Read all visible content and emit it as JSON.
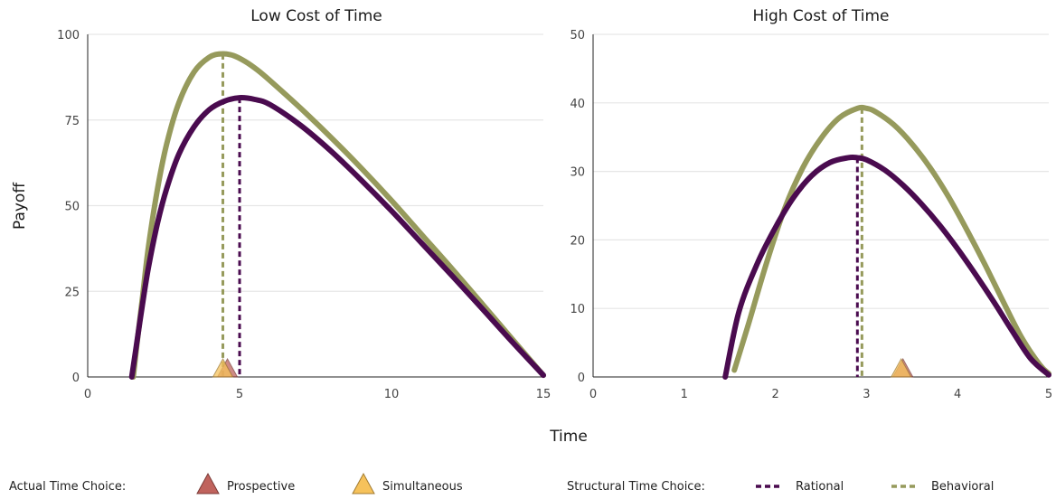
{
  "shared": {
    "ylabel": "Payoff",
    "xlabel": "Time"
  },
  "legend": {
    "actual_title": "Actual Time Choice:",
    "prospective": "Prospective",
    "simultaneous": "Simultaneous",
    "structural_title": "Structural Time Choice:",
    "rational": "Rational",
    "behavioral": "Behavioral"
  },
  "colors": {
    "rational": "#4a0b4f",
    "behavioral": "#969a5c",
    "prospective": "#c0635d",
    "simultaneous": "#f6c25b",
    "grid": "#e6e6e6",
    "axis": "#222222"
  },
  "chart_data": [
    {
      "type": "line",
      "title": "Low Cost of Time",
      "xlim": [
        0,
        15
      ],
      "ylim": [
        0,
        100
      ],
      "xticks": [
        0,
        5,
        10,
        15
      ],
      "yticks": [
        0,
        25,
        50,
        75,
        100
      ],
      "grid": true,
      "series": [
        {
          "name": "Rational",
          "x": [
            1.45,
            1.6,
            1.8,
            2.0,
            2.3,
            2.6,
            3.0,
            3.5,
            4.0,
            4.5,
            5.0,
            5.5,
            6.0,
            7.0,
            8.0,
            9.0,
            10.0,
            11.0,
            12.0,
            13.0,
            14.0,
            15.0
          ],
          "y": [
            0,
            9,
            21,
            32,
            45,
            55,
            65,
            73,
            78,
            80.5,
            81.5,
            81,
            79.5,
            73.5,
            66,
            57.5,
            48.5,
            39,
            29.5,
            19.8,
            10,
            0.5
          ]
        },
        {
          "name": "Behavioral",
          "x": [
            1.5,
            1.6,
            1.8,
            2.0,
            2.3,
            2.6,
            3.0,
            3.5,
            4.0,
            4.4,
            4.8,
            5.2,
            5.6,
            6.0,
            7.0,
            8.0,
            9.0,
            10.0,
            11.0,
            12.0,
            13.0,
            14.0,
            15.0
          ],
          "y": [
            0,
            8,
            23,
            38,
            55,
            68,
            80,
            89,
            93.3,
            94.3,
            93.8,
            92,
            89.5,
            86.5,
            78.5,
            70,
            61,
            51.5,
            41.5,
            31.5,
            21.2,
            10.8,
            0.5
          ]
        }
      ],
      "structural_choice": {
        "Rational": 5.0,
        "Behavioral": 4.45
      },
      "actual_choice": {
        "Prospective": 4.6,
        "Simultaneous": 4.45
      }
    },
    {
      "type": "line",
      "title": "High Cost of Time",
      "xlim": [
        0,
        5
      ],
      "ylim": [
        0,
        50
      ],
      "xticks": [
        0,
        1,
        2,
        3,
        4,
        5
      ],
      "yticks": [
        0,
        10,
        20,
        30,
        40,
        50
      ],
      "grid": true,
      "series": [
        {
          "name": "Rational",
          "x": [
            1.45,
            1.6,
            1.8,
            2.0,
            2.2,
            2.4,
            2.6,
            2.8,
            2.9,
            3.0,
            3.2,
            3.4,
            3.6,
            3.8,
            4.0,
            4.2,
            4.4,
            4.6,
            4.8,
            5.0
          ],
          "y": [
            0,
            9.5,
            16.5,
            21.8,
            26.2,
            29.4,
            31.3,
            32.0,
            32.0,
            31.7,
            30.2,
            28.0,
            25.3,
            22.2,
            18.7,
            14.9,
            10.9,
            6.7,
            2.7,
            0.3
          ]
        },
        {
          "name": "Behavioral",
          "x": [
            1.55,
            1.7,
            1.9,
            2.1,
            2.3,
            2.5,
            2.7,
            2.9,
            3.0,
            3.1,
            3.3,
            3.5,
            3.7,
            3.9,
            4.1,
            4.3,
            4.5,
            4.7,
            4.9,
            5.0
          ],
          "y": [
            1,
            7.5,
            16.5,
            24.5,
            30.5,
            34.8,
            37.8,
            39.2,
            39.2,
            38.7,
            36.8,
            34.0,
            30.5,
            26.3,
            21.5,
            16.4,
            11.0,
            5.8,
            1.8,
            0.5
          ]
        }
      ],
      "structural_choice": {
        "Rational": 2.9,
        "Behavioral": 2.95
      },
      "actual_choice": {
        "Prospective": 3.4,
        "Simultaneous": 3.38
      }
    }
  ]
}
